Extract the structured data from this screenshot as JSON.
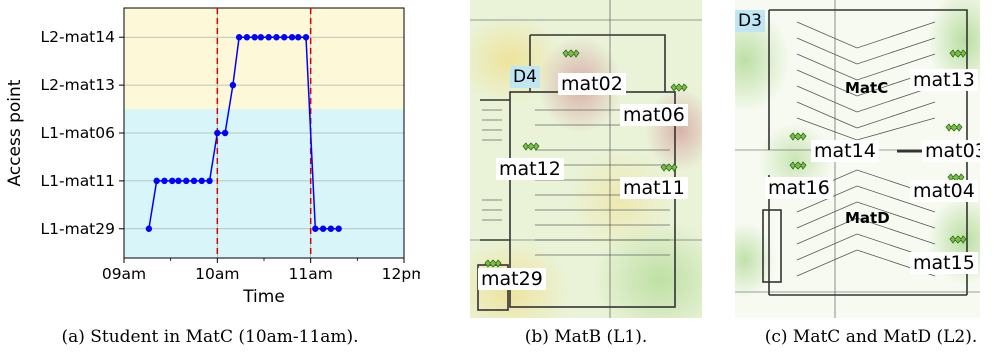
{
  "chart_data": {
    "type": "line",
    "xlabel": "Time",
    "ylabel": "Access point",
    "x_ticks": [
      "09am",
      "10am",
      "11am",
      "12pm"
    ],
    "x_range": [
      "09:00",
      "12:00"
    ],
    "categories": [
      "L1-mat29",
      "L1-mat11",
      "L1-mat06",
      "L2-mat13",
      "L2-mat14"
    ],
    "series": [
      {
        "color": "#0000ff",
        "points": [
          {
            "x": "09:16",
            "y": "L1-mat29"
          },
          {
            "x": "09:21",
            "y": "L1-mat11"
          },
          {
            "x": "09:26",
            "y": "L1-mat11"
          },
          {
            "x": "09:31",
            "y": "L1-mat11"
          },
          {
            "x": "09:35",
            "y": "L1-mat11"
          },
          {
            "x": "09:40",
            "y": "L1-mat11"
          },
          {
            "x": "09:45",
            "y": "L1-mat11"
          },
          {
            "x": "09:50",
            "y": "L1-mat11"
          },
          {
            "x": "09:55",
            "y": "L1-mat11"
          },
          {
            "x": "10:00",
            "y": "L1-mat06"
          },
          {
            "x": "10:05",
            "y": "L1-mat06"
          },
          {
            "x": "10:10",
            "y": "L2-mat13"
          },
          {
            "x": "10:14",
            "y": "L2-mat14"
          },
          {
            "x": "10:19",
            "y": "L2-mat14"
          },
          {
            "x": "10:24",
            "y": "L2-mat14"
          },
          {
            "x": "10:28",
            "y": "L2-mat14"
          },
          {
            "x": "10:33",
            "y": "L2-mat14"
          },
          {
            "x": "10:38",
            "y": "L2-mat14"
          },
          {
            "x": "10:43",
            "y": "L2-mat14"
          },
          {
            "x": "10:48",
            "y": "L2-mat14"
          },
          {
            "x": "10:52",
            "y": "L2-mat14"
          },
          {
            "x": "10:57",
            "y": "L2-mat14"
          },
          {
            "x": "11:03",
            "y": "L1-mat29"
          },
          {
            "x": "11:08",
            "y": "L1-mat29"
          },
          {
            "x": "11:13",
            "y": "L1-mat29"
          },
          {
            "x": "11:18",
            "y": "L1-mat29"
          }
        ]
      }
    ],
    "vlines": [
      {
        "x": "10:00",
        "color": "#dd0000",
        "style": "dashed"
      },
      {
        "x": "11:00",
        "color": "#dd0000",
        "style": "dashed"
      }
    ],
    "bands": [
      {
        "from": "L2-mat13",
        "to": "L2-mat14",
        "level": "L2",
        "color": "#fdf8d8"
      },
      {
        "from": "L1-mat29",
        "to": "L1-mat06",
        "level": "L1",
        "color": "#d8f6fa"
      }
    ],
    "grid": true
  },
  "captions": {
    "a": "(a) Student in MatC (10am-11am).",
    "b": "(b) MatB (L1).",
    "c": "(c) MatC and MatD (L2)."
  },
  "map_b": {
    "door": "D4",
    "aps": [
      "mat02",
      "mat06",
      "mat12",
      "mat11",
      "mat29"
    ]
  },
  "map_c": {
    "door": "D3",
    "rooms": [
      "MatC",
      "MatD"
    ],
    "aps": [
      "mat13",
      "mat14",
      "mat03",
      "mat16",
      "mat04",
      "mat15"
    ]
  },
  "colors": {
    "series": "#0000ff",
    "vline": "#dd0000",
    "band_l2": "#fdf8d8",
    "band_l1": "#d8f6fa",
    "heat_green": "#c9e6a8",
    "heat_yellow": "#f3e59b",
    "heat_red": "#e3b3a3"
  }
}
